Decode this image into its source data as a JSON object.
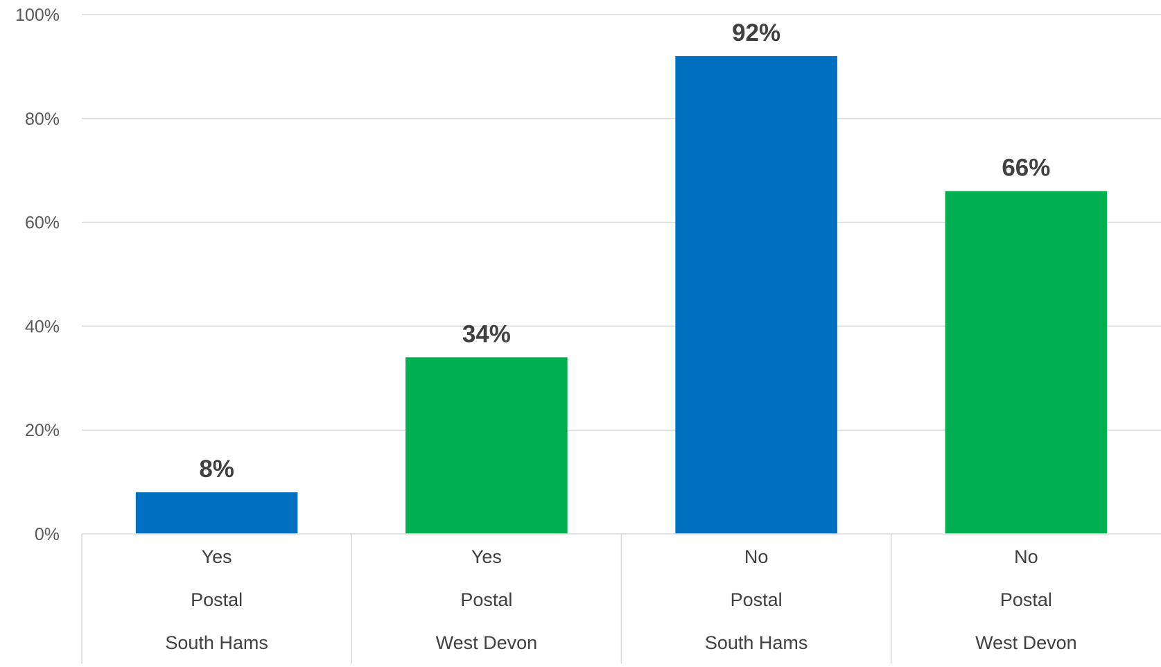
{
  "chart_data": {
    "type": "bar",
    "title": "",
    "xlabel": "",
    "ylabel": "",
    "ylim": [
      0,
      100
    ],
    "yticks": [
      "0%",
      "20%",
      "40%",
      "60%",
      "80%",
      "100%"
    ],
    "ytick_values": [
      0,
      20,
      40,
      60,
      80,
      100
    ],
    "grid": true,
    "legend": "none",
    "categories": [
      {
        "levels": [
          "Yes",
          "Postal",
          "South Hams"
        ]
      },
      {
        "levels": [
          "Yes",
          "Postal",
          "West Devon"
        ]
      },
      {
        "levels": [
          "No",
          "Postal",
          "South Hams"
        ]
      },
      {
        "levels": [
          "No",
          "Postal",
          "West Devon"
        ]
      }
    ],
    "values": [
      8,
      34,
      92,
      66
    ],
    "data_labels": [
      "8%",
      "34%",
      "92%",
      "66%"
    ],
    "bar_colors": [
      "#0070C0",
      "#00B050",
      "#0070C0",
      "#00B050"
    ]
  }
}
